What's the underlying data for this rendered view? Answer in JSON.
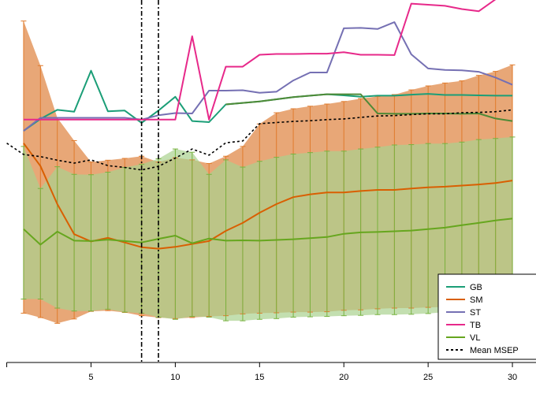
{
  "chart_data": {
    "type": "line",
    "title": "",
    "xlabel": "",
    "ylabel": "",
    "xlim": [
      -0.4,
      31.4
    ],
    "ylim": [
      0,
      100
    ],
    "x_ticks": [
      5,
      10,
      15,
      20,
      25,
      30
    ],
    "x_tick_labels": [
      "5",
      "10",
      "15",
      "20",
      "25",
      "30"
    ],
    "vlines": [
      8,
      9
    ],
    "legend_position": "bottom-right",
    "bands": [
      {
        "name": "SM",
        "color": "#E08A4A",
        "upper": [
          94.2,
          81.9,
          67.5,
          61.2,
          55.3,
          55.8,
          56.3,
          56.9,
          55.3,
          56.5,
          55.9,
          54.9,
          56.9,
          59.6,
          65.8,
          68.9,
          70.0,
          70.7,
          71.3,
          72.0,
          72.8,
          73.4,
          73.9,
          75.2,
          76.3,
          77.1,
          77.7,
          79.2,
          80.3,
          82.1
        ],
        "lower": [
          13.6,
          12.4,
          10.8,
          12.0,
          14.1,
          14.3,
          13.8,
          12.9,
          12.4,
          12.1,
          12.4,
          12.7,
          12.9,
          13.4,
          13.6,
          13.7,
          13.9,
          13.9,
          14.0,
          14.4,
          14.5,
          14.8,
          15.0,
          15.0,
          15.2,
          15.3,
          15.5,
          15.5,
          15.7,
          15.6
        ]
      },
      {
        "name": "VL",
        "color": "#A9D18E",
        "upper": [
          59.6,
          48.0,
          54.0,
          51.9,
          51.8,
          52.5,
          53.8,
          54.7,
          56.2,
          58.9,
          58.0,
          51.9,
          55.9,
          53.9,
          55.5,
          56.6,
          57.5,
          57.9,
          58.3,
          58.3,
          58.9,
          59.4,
          60.0,
          60.1,
          60.4,
          60.4,
          60.8,
          61.5,
          61.8,
          62.2
        ],
        "lower": [
          17.5,
          17.5,
          15.0,
          14.2,
          14.2,
          14.7,
          13.9,
          13.6,
          12.5,
          11.9,
          12.7,
          12.5,
          11.5,
          11.5,
          11.9,
          12.1,
          12.5,
          12.6,
          12.7,
          12.9,
          13.0,
          13.2,
          13.2,
          13.3,
          13.5,
          13.9,
          14.2,
          14.2,
          14.2,
          14.2
        ]
      }
    ],
    "series": [
      {
        "name": "GB",
        "color": "#1B9E77",
        "width": 2,
        "x": [
          1,
          2,
          3,
          4,
          5,
          6,
          7,
          8,
          9,
          10,
          11,
          12,
          13,
          14,
          15,
          16,
          17,
          18,
          19,
          20,
          21,
          22,
          23,
          24,
          25,
          26,
          27,
          28,
          29,
          30
        ],
        "y": [
          63.9,
          67.2,
          69.7,
          69.2,
          80.5,
          69.3,
          69.5,
          66.1,
          69.5,
          73.3,
          66.6,
          66.3,
          71.2,
          71.6,
          72.0,
          72.6,
          73.2,
          73.6,
          74.0,
          73.7,
          73.3,
          73.6,
          73.6,
          73.9,
          74.1,
          73.8,
          73.8,
          73.7,
          73.6,
          73.6
        ]
      },
      {
        "name": "SM",
        "color": "#D95F02",
        "width": 2,
        "x": [
          1,
          2,
          3,
          4,
          5,
          6,
          7,
          8,
          9,
          10,
          11,
          12,
          13,
          14,
          15,
          16,
          17,
          18,
          19,
          20,
          21,
          22,
          23,
          24,
          25,
          26,
          27,
          28,
          29,
          30
        ],
        "y": [
          60.5,
          54.2,
          43.7,
          35.4,
          33.4,
          34.4,
          33.1,
          31.8,
          31.4,
          31.9,
          32.7,
          33.5,
          36.3,
          38.5,
          41.3,
          43.7,
          45.6,
          46.4,
          46.9,
          46.9,
          47.3,
          47.6,
          47.6,
          48.0,
          48.3,
          48.5,
          48.8,
          49.1,
          49.5,
          50.2
        ]
      },
      {
        "name": "ST",
        "color": "#7570B3",
        "width": 2,
        "x": [
          1,
          2,
          3,
          4,
          5,
          6,
          7,
          8,
          9,
          10,
          11,
          12,
          13,
          14,
          15,
          16,
          17,
          18,
          19,
          20,
          21,
          22,
          23,
          24,
          25,
          26,
          27,
          28,
          29,
          30
        ],
        "y": [
          63.9,
          67.5,
          67.5,
          67.5,
          67.5,
          67.5,
          67.5,
          67.0,
          68.2,
          68.8,
          68.7,
          75.0,
          75.0,
          75.1,
          74.4,
          74.7,
          77.8,
          80.0,
          80.0,
          92.2,
          92.3,
          92.0,
          93.9,
          85.0,
          81.1,
          80.7,
          80.6,
          80.2,
          78.6,
          76.6
        ]
      },
      {
        "name": "TB",
        "color": "#E7298A",
        "width": 2,
        "x": [
          1,
          2,
          3,
          4,
          5,
          6,
          7,
          8,
          9,
          10,
          11,
          12,
          13,
          14,
          15,
          16,
          17,
          18,
          19,
          20,
          21,
          22,
          23,
          24,
          25,
          26,
          27,
          28,
          29,
          30
        ],
        "y": [
          67.0,
          67.0,
          67.0,
          67.0,
          67.0,
          67.0,
          67.0,
          67.0,
          67.0,
          67.0,
          90.0,
          67.0,
          81.6,
          81.6,
          84.9,
          85.1,
          85.1,
          85.2,
          85.2,
          85.6,
          84.9,
          84.9,
          84.8,
          99.0,
          98.7,
          98.4,
          97.5,
          96.9,
          100.2,
          102.0
        ]
      },
      {
        "name": "VL",
        "color": "#66A61E",
        "width": 2,
        "x": [
          1,
          2,
          3,
          4,
          5,
          6,
          7,
          8,
          9,
          10,
          11,
          12,
          13,
          14,
          15,
          16,
          17,
          18,
          19,
          20,
          21,
          22,
          23,
          24,
          25,
          26,
          27,
          28,
          29,
          30
        ],
        "y": [
          36.8,
          32.5,
          36.1,
          33.6,
          33.5,
          33.9,
          33.5,
          33.1,
          34.1,
          35.0,
          32.9,
          34.2,
          33.6,
          33.7,
          33.6,
          33.8,
          34.0,
          34.3,
          34.6,
          35.5,
          35.9,
          36.0,
          36.2,
          36.4,
          36.8,
          37.2,
          37.9,
          38.5,
          39.2,
          39.7
        ]
      },
      {
        "name": "VL",
        "color": "#4E8A37",
        "width": 2,
        "x": [
          13,
          14,
          15,
          16,
          17,
          18,
          19,
          20,
          21,
          22,
          23,
          24,
          25,
          26,
          27,
          28,
          29,
          30
        ],
        "y": [
          71.2,
          71.6,
          72.0,
          72.6,
          73.2,
          73.6,
          74.0,
          74.0,
          74.0,
          68.7,
          68.6,
          68.6,
          68.7,
          68.7,
          68.6,
          68.7,
          67.3,
          66.6
        ]
      },
      {
        "name": "Mean MSEP",
        "color": "#000000",
        "width": 1.6,
        "dash": "3,3",
        "x": [
          0,
          1,
          2,
          3,
          4,
          5,
          6,
          7,
          8,
          9,
          10,
          11,
          12,
          13,
          14,
          15,
          16,
          17,
          18,
          19,
          20,
          21,
          22,
          23,
          24,
          25,
          26,
          27,
          28,
          29,
          30
        ],
        "y": [
          60.5,
          57.4,
          56.8,
          55.8,
          55.0,
          55.9,
          54.3,
          53.8,
          53.1,
          54.1,
          56.4,
          58.9,
          57.2,
          60.6,
          61.1,
          65.9,
          66.2,
          66.5,
          66.7,
          67.0,
          67.2,
          67.6,
          68.0,
          68.1,
          68.4,
          68.6,
          68.6,
          68.9,
          69.0,
          69.2,
          69.7
        ]
      }
    ],
    "legend": [
      {
        "label": "GB",
        "color": "#1B9E77",
        "dash": ""
      },
      {
        "label": "SM",
        "color": "#D95F02",
        "dash": ""
      },
      {
        "label": "ST",
        "color": "#7570B3",
        "dash": ""
      },
      {
        "label": "TB",
        "color": "#E7298A",
        "dash": ""
      },
      {
        "label": "VL",
        "color": "#66A61E",
        "dash": ""
      },
      {
        "label": "Mean MSEP",
        "color": "#000000",
        "dash": "3,3"
      }
    ]
  }
}
